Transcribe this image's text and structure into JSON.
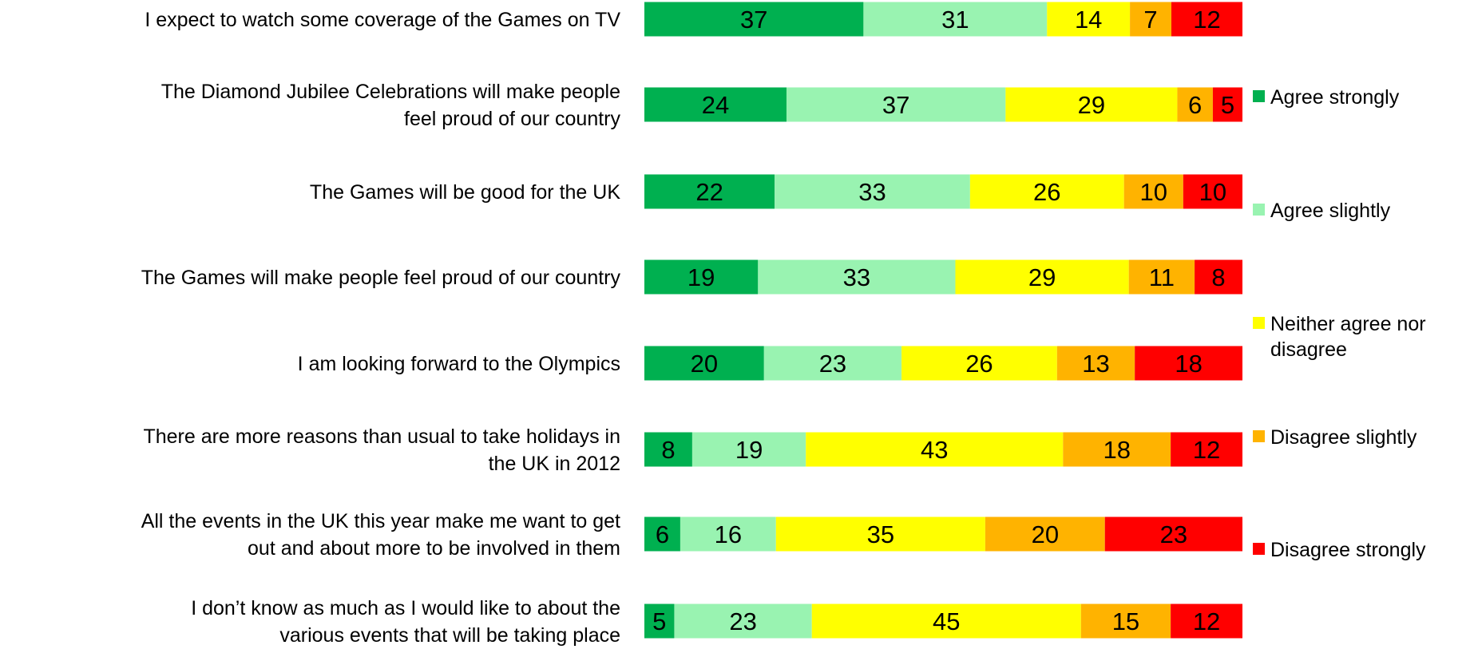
{
  "chart_data": {
    "type": "bar",
    "orientation": "horizontal",
    "stacked": true,
    "grid": false,
    "legend_position": "right",
    "categories": [
      "I expect to watch some coverage of the Games on TV",
      "The Diamond Jubilee Celebrations will make people feel proud of our country",
      "The Games will be good for the UK",
      "The Games will make people feel proud of our country",
      "I am looking forward to the Olympics",
      "There are more reasons than usual to take holidays in the UK in 2012",
      "All the events in the UK this year make me want to get out and about more to be involved in them",
      "I don’t know as much as I would like to about the various events that will be taking place"
    ],
    "category_lines": [
      [
        "I expect to watch some coverage of the Games on TV"
      ],
      [
        "The Diamond Jubilee Celebrations will make people",
        "feel proud of our country"
      ],
      [
        "The Games will be good for the UK"
      ],
      [
        "The Games will make people feel proud of our country"
      ],
      [
        "I am looking forward to the Olympics"
      ],
      [
        "There are more reasons than usual to take holidays in",
        "the UK in 2012"
      ],
      [
        "All the events in the UK this year make me want to get",
        "out and about more to be involved in them"
      ],
      [
        "I don’t know as much as I would like to about the",
        "various events that will be taking place"
      ]
    ],
    "series": [
      {
        "name": "Agree strongly",
        "color": "#00b050",
        "values": [
          37,
          24,
          22,
          19,
          20,
          8,
          6,
          5
        ]
      },
      {
        "name": "Agree slightly",
        "color": "#99f3b1",
        "values": [
          31,
          37,
          33,
          33,
          23,
          19,
          16,
          23
        ]
      },
      {
        "name": "Neither agree nor disagree",
        "legend_lines": [
          "Neither agree nor",
          "disagree"
        ],
        "color": "#ffff00",
        "values": [
          14,
          29,
          26,
          29,
          26,
          43,
          35,
          45
        ]
      },
      {
        "name": "Disagree slightly",
        "color": "#ffb300",
        "values": [
          7,
          6,
          10,
          11,
          13,
          18,
          20,
          15
        ]
      },
      {
        "name": "Disagree strongly",
        "color": "#ff0000",
        "values": [
          12,
          5,
          10,
          8,
          18,
          12,
          23,
          12
        ]
      }
    ]
  }
}
